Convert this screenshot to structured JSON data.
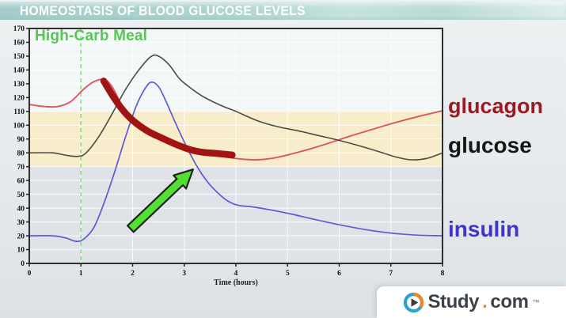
{
  "title_bar": {
    "text": "HOMEOSTASIS OF BLOOD GLUCOSE LEVELS"
  },
  "chart_data": {
    "type": "line",
    "title": "",
    "xlabel": "Time (hours)",
    "ylabel": "",
    "xlim": [
      0,
      8
    ],
    "ylim": [
      0,
      170
    ],
    "x_ticks": [
      0,
      1,
      2,
      3,
      4,
      5,
      6,
      7,
      8
    ],
    "y_ticks": [
      0,
      10,
      20,
      30,
      40,
      50,
      60,
      70,
      80,
      90,
      100,
      110,
      120,
      130,
      140,
      150,
      160,
      170
    ],
    "grid": "on",
    "normal_band": {
      "from": 70,
      "to": 110,
      "color": "#f8edca"
    },
    "meal_marker": {
      "x": 1,
      "label": "High-Carb Meal",
      "color": "#4dc54d",
      "style": "dashed-vertical-line"
    },
    "series": [
      {
        "name": "glucagon",
        "color": "#d85763",
        "points": [
          [
            0,
            115
          ],
          [
            0.3,
            113.5
          ],
          [
            0.55,
            113.5
          ],
          [
            0.8,
            117
          ],
          [
            1.05,
            126
          ],
          [
            1.25,
            131.5
          ],
          [
            1.45,
            133
          ],
          [
            1.6,
            128
          ],
          [
            1.8,
            114
          ],
          [
            2.0,
            104
          ],
          [
            2.3,
            96
          ],
          [
            2.6,
            90.5
          ],
          [
            2.9,
            86
          ],
          [
            3.2,
            82
          ],
          [
            3.5,
            79
          ],
          [
            3.8,
            77
          ],
          [
            4.1,
            75.5
          ],
          [
            4.4,
            75
          ],
          [
            4.7,
            76
          ],
          [
            5.0,
            78.5
          ],
          [
            5.4,
            82.5
          ],
          [
            5.8,
            87
          ],
          [
            6.2,
            92
          ],
          [
            6.6,
            96.5
          ],
          [
            7.0,
            101
          ],
          [
            7.5,
            106
          ],
          [
            8,
            110.5
          ]
        ]
      },
      {
        "name": "glucose",
        "color": "#4b4b45",
        "points": [
          [
            0,
            80
          ],
          [
            0.45,
            80
          ],
          [
            0.75,
            78
          ],
          [
            0.95,
            77.5
          ],
          [
            1.1,
            80
          ],
          [
            1.35,
            92
          ],
          [
            1.6,
            108
          ],
          [
            1.85,
            125
          ],
          [
            2.1,
            139
          ],
          [
            2.35,
            149.5
          ],
          [
            2.5,
            150
          ],
          [
            2.7,
            144
          ],
          [
            2.9,
            134
          ],
          [
            3.05,
            129
          ],
          [
            3.35,
            121
          ],
          [
            3.7,
            114.5
          ],
          [
            4.0,
            110
          ],
          [
            4.4,
            103.5
          ],
          [
            4.8,
            99
          ],
          [
            5.2,
            96
          ],
          [
            5.6,
            92.5
          ],
          [
            6.0,
            89
          ],
          [
            6.4,
            85
          ],
          [
            6.8,
            80.5
          ],
          [
            7.1,
            77
          ],
          [
            7.4,
            75
          ],
          [
            7.7,
            76
          ],
          [
            8,
            80
          ]
        ]
      },
      {
        "name": "insulin",
        "color": "#6059d4",
        "points": [
          [
            0,
            20
          ],
          [
            0.45,
            20
          ],
          [
            0.7,
            18.5
          ],
          [
            0.9,
            16
          ],
          [
            1.05,
            17.5
          ],
          [
            1.25,
            26
          ],
          [
            1.45,
            44
          ],
          [
            1.65,
            66
          ],
          [
            1.85,
            90
          ],
          [
            2.05,
            112
          ],
          [
            2.2,
            124
          ],
          [
            2.35,
            131
          ],
          [
            2.5,
            128
          ],
          [
            2.65,
            117
          ],
          [
            2.85,
            100
          ],
          [
            3.05,
            84
          ],
          [
            3.25,
            70
          ],
          [
            3.45,
            59
          ],
          [
            3.65,
            51
          ],
          [
            3.85,
            45
          ],
          [
            4.05,
            42
          ],
          [
            4.3,
            41
          ],
          [
            4.7,
            38.5
          ],
          [
            5.1,
            35.5
          ],
          [
            5.5,
            32
          ],
          [
            6.0,
            28
          ],
          [
            6.5,
            24.5
          ],
          [
            7.0,
            22
          ],
          [
            7.5,
            20.5
          ],
          [
            8,
            20
          ]
        ]
      }
    ],
    "annotations": [
      {
        "type": "marker-stroke",
        "color": "#a21414",
        "width": 8.5,
        "points": [
          [
            1.44,
            132
          ],
          [
            1.62,
            121
          ],
          [
            1.82,
            110.5
          ],
          [
            2.02,
            103
          ],
          [
            2.28,
            96
          ],
          [
            2.55,
            91
          ],
          [
            2.85,
            86
          ],
          [
            3.1,
            82.5
          ],
          [
            3.35,
            80.5
          ],
          [
            3.65,
            79.5
          ],
          [
            3.93,
            78.5
          ]
        ]
      },
      {
        "type": "arrow",
        "fill": "#54df35",
        "outline": "#1e241c",
        "tail": [
          1.96,
          25
        ],
        "tip": [
          3.17,
          68
        ]
      }
    ]
  },
  "side_labels": [
    {
      "text": "glucagon",
      "color": "#9b1b24"
    },
    {
      "text": "glucose",
      "color": "#161616"
    },
    {
      "text": "insulin",
      "color": "#3e35c9"
    }
  ],
  "logo": {
    "study": "Study",
    "dot": ".",
    "com": "com",
    "tm": "™",
    "accent_orange": "#f5821f",
    "accent_teal": "#2aa5c9",
    "text_color": "#3b4249"
  }
}
